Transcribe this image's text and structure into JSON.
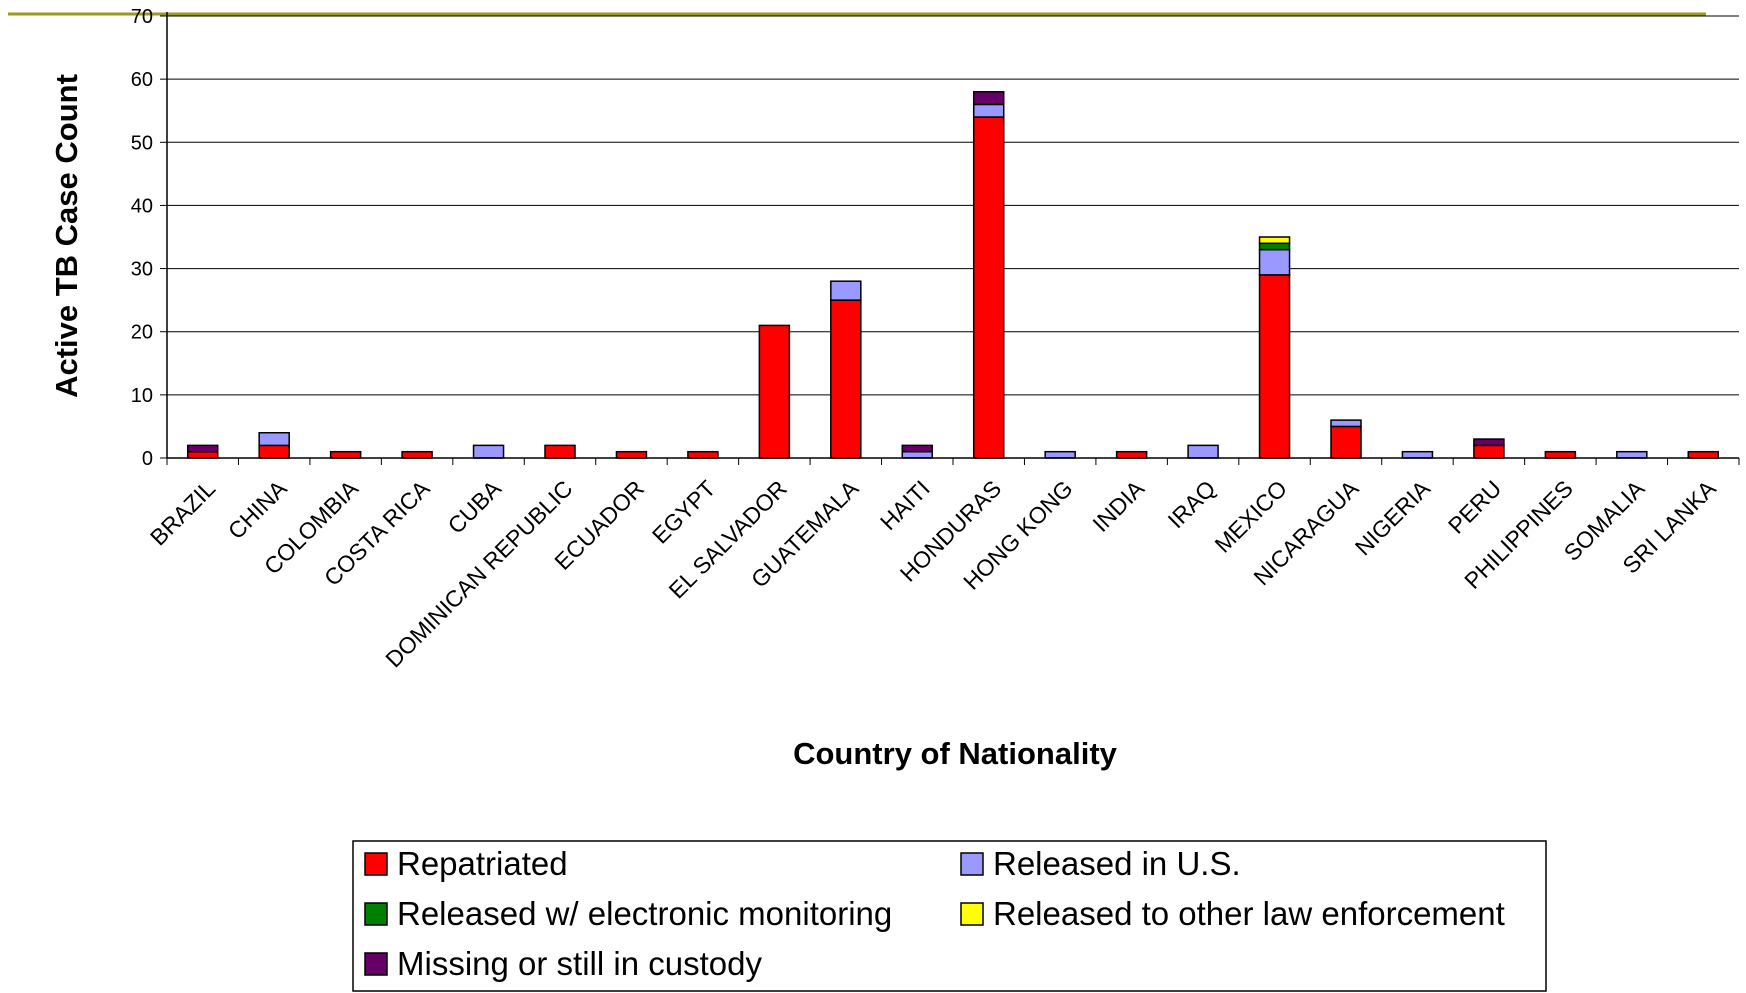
{
  "colors": {
    "header_line": "#9a9a1e",
    "grid": "#000000",
    "Repatriated": "#ff0000",
    "Released in U.S.": "#9999ff",
    "Released w/ electronic monitoring": "#008000",
    "Released to other law enforcement": "#ffff00",
    "Missing or still in custody": "#660066"
  },
  "chart_data": {
    "type": "bar",
    "stacked": true,
    "title": "",
    "xlabel": "Country of Nationality",
    "ylabel": "Active TB Case Count",
    "ylim": [
      0,
      70
    ],
    "yticks": [
      0,
      10,
      20,
      30,
      40,
      50,
      60,
      70
    ],
    "grid": true,
    "legend_position": "bottom",
    "categories": [
      "BRAZIL",
      "CHINA",
      "COLOMBIA",
      "COSTA RICA",
      "CUBA",
      "DOMINICAN REPUBLIC",
      "ECUADOR",
      "EGYPT",
      "EL SALVADOR",
      "GUATEMALA",
      "HAITI",
      "HONDURAS",
      "HONG KONG",
      "INDIA",
      "IRAQ",
      "MEXICO",
      "NICARAGUA",
      "NIGERIA",
      "PERU",
      "PHILIPPINES",
      "SOMALIA",
      "SRI LANKA"
    ],
    "series": [
      {
        "name": "Repatriated",
        "values": [
          1,
          2,
          1,
          1,
          0,
          2,
          1,
          1,
          21,
          25,
          0,
          54,
          0,
          1,
          0,
          29,
          5,
          0,
          2,
          1,
          0,
          1
        ]
      },
      {
        "name": "Released in U.S.",
        "values": [
          0,
          2,
          0,
          0,
          2,
          0,
          0,
          0,
          0,
          3,
          1,
          2,
          1,
          0,
          2,
          4,
          1,
          1,
          0,
          0,
          1,
          0
        ]
      },
      {
        "name": "Released w/ electronic monitoring",
        "values": [
          0,
          0,
          0,
          0,
          0,
          0,
          0,
          0,
          0,
          0,
          0,
          0,
          0,
          0,
          0,
          1,
          0,
          0,
          0,
          0,
          0,
          0
        ]
      },
      {
        "name": "Released to other law enforcement",
        "values": [
          0,
          0,
          0,
          0,
          0,
          0,
          0,
          0,
          0,
          0,
          0,
          0,
          0,
          0,
          0,
          1,
          0,
          0,
          0,
          0,
          0,
          0
        ]
      },
      {
        "name": "Missing or still in custody",
        "values": [
          1,
          0,
          0,
          0,
          0,
          0,
          0,
          0,
          0,
          0,
          1,
          2,
          0,
          0,
          0,
          0,
          0,
          0,
          1,
          0,
          0,
          0
        ]
      }
    ],
    "legend_order": [
      "Repatriated",
      "Released in U.S.",
      "Released w/ electronic monitoring",
      "Released to other law enforcement",
      "Missing or still in custody"
    ]
  }
}
